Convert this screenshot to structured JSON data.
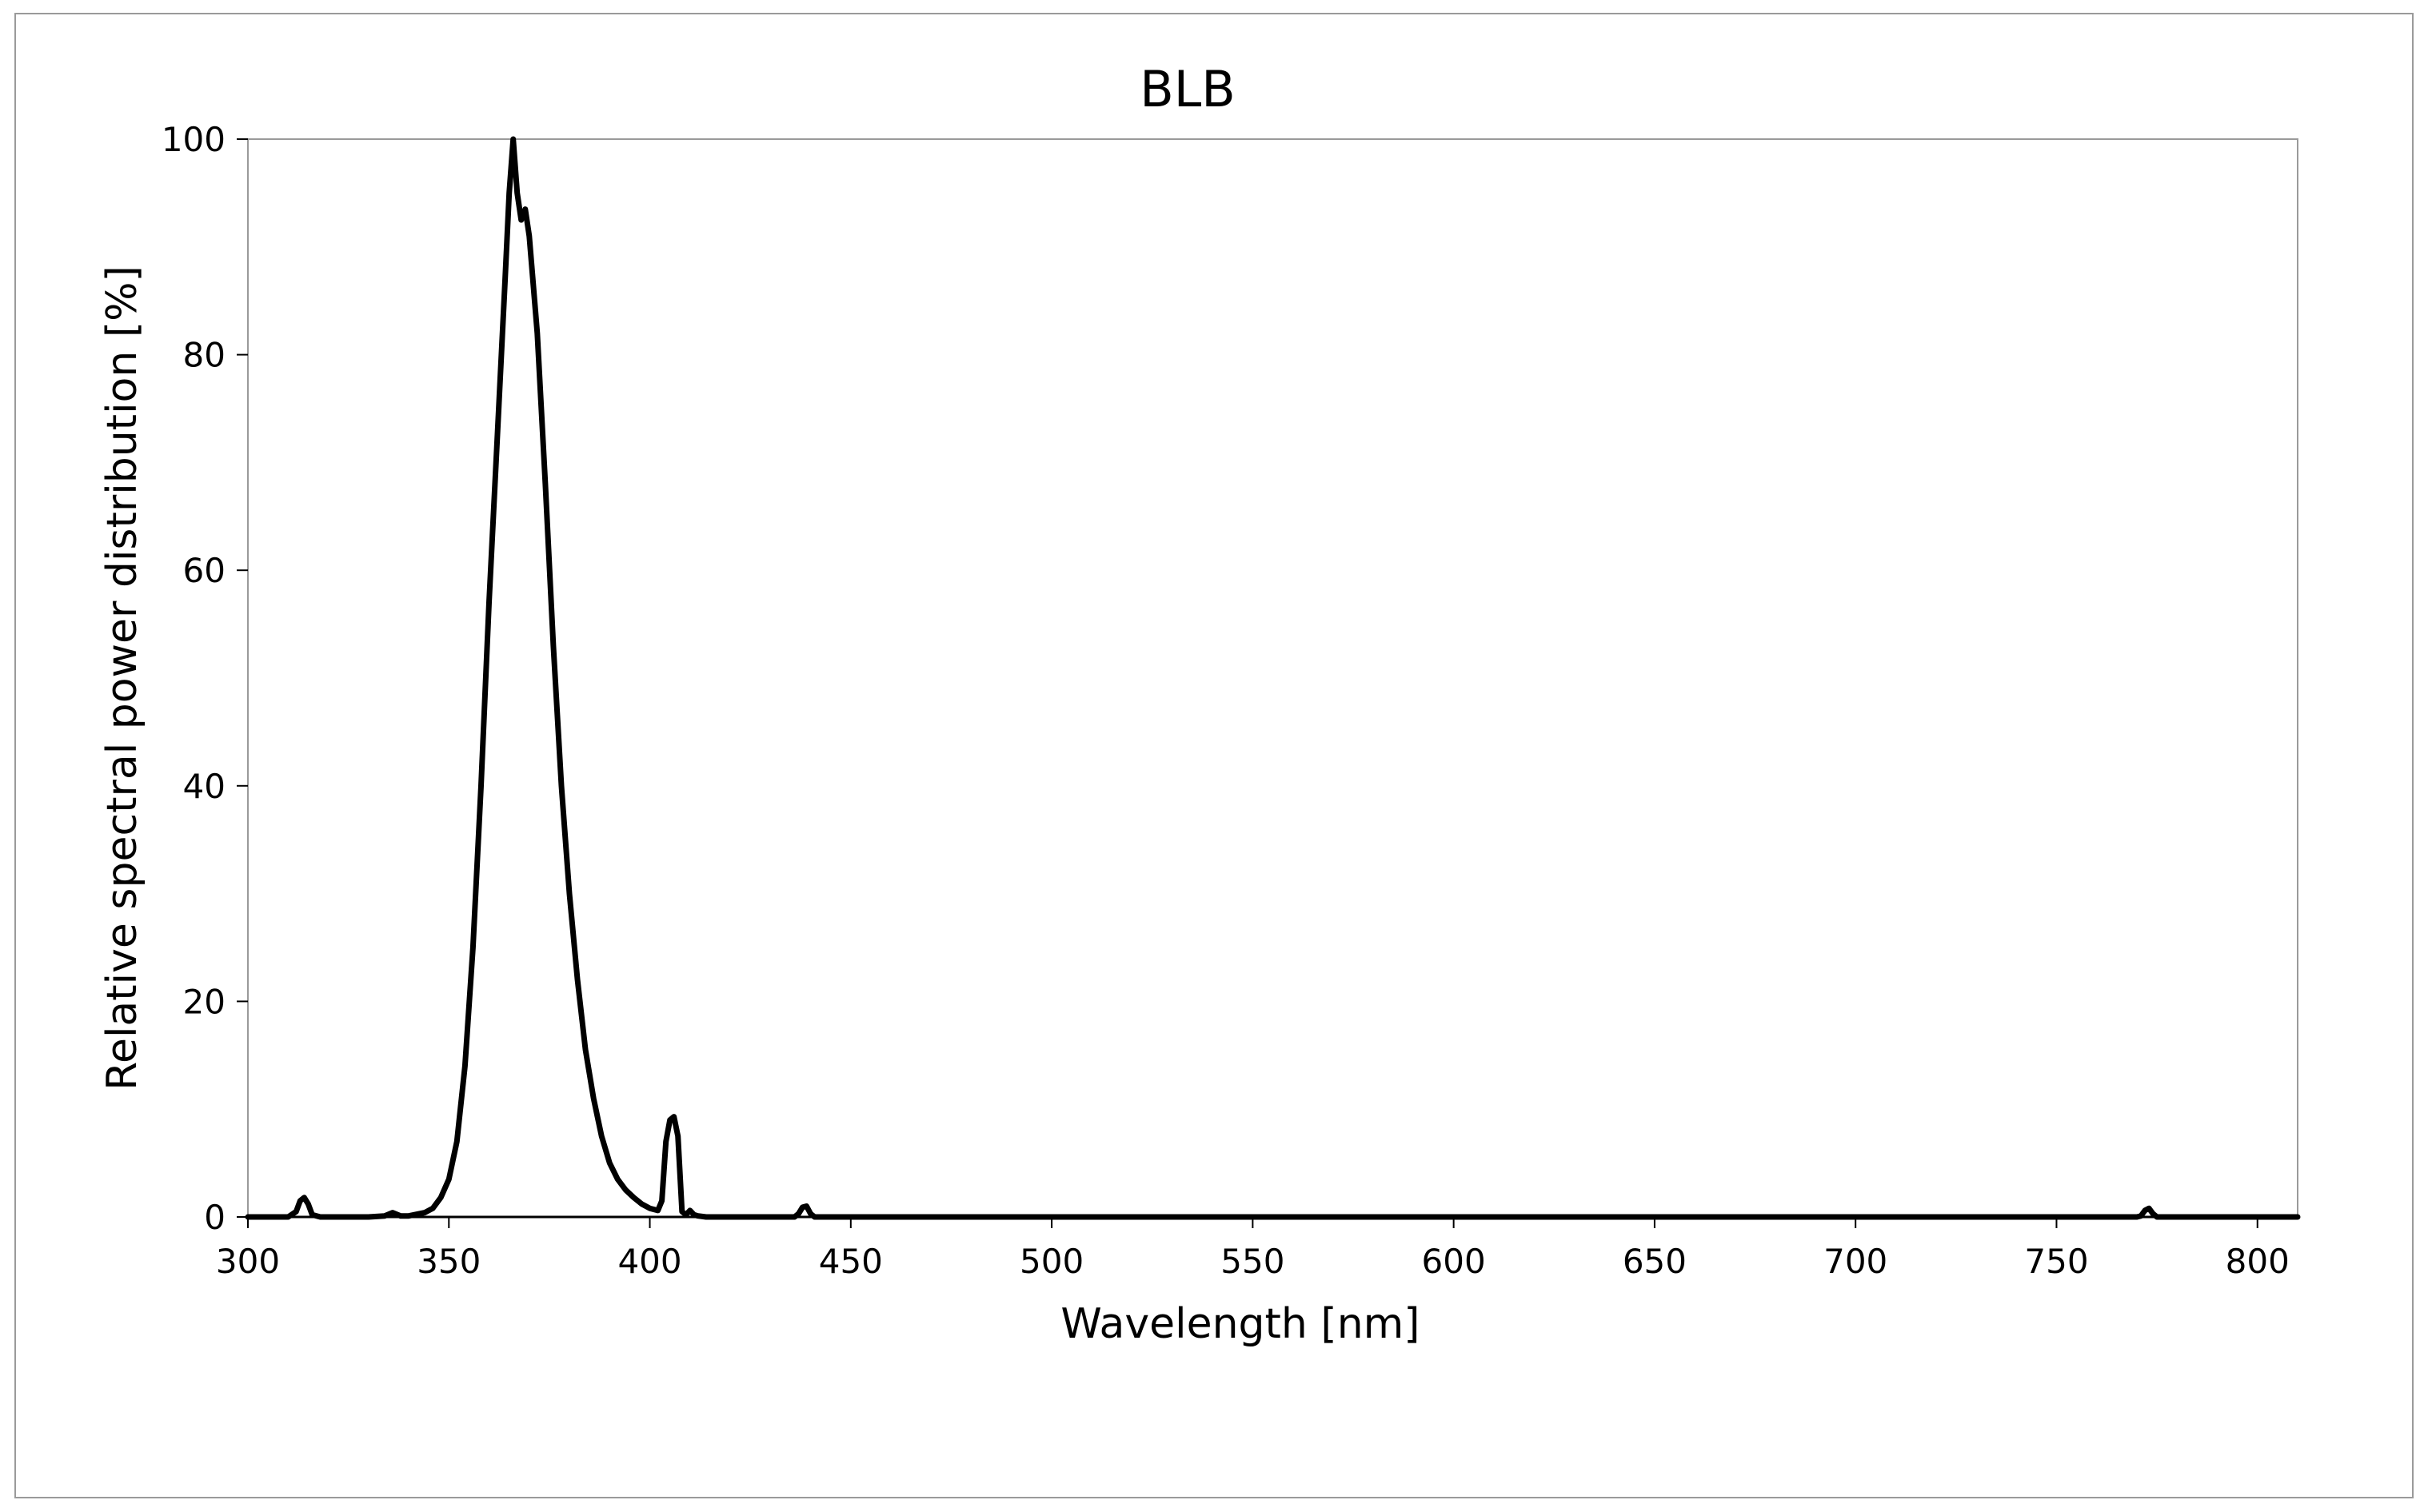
{
  "chart_data": {
    "type": "line",
    "title": "BLB",
    "xlabel": "Wavelength [nm]",
    "ylabel": "Relative spectral power distribution [%]",
    "xlim": [
      300,
      810
    ],
    "ylim": [
      0,
      100
    ],
    "xticks": [
      "300",
      "350",
      "400",
      "450",
      "500",
      "550",
      "600",
      "650",
      "700",
      "750",
      "800"
    ],
    "yticks": [
      "0",
      "20",
      "40",
      "60",
      "80",
      "100"
    ],
    "grid": false,
    "legend": "none",
    "line_color": "#000000",
    "series": [
      {
        "x": [
          300,
          310,
          312,
          313,
          314,
          315,
          316,
          318,
          330,
          334,
          336,
          338,
          340,
          344,
          346,
          348,
          350,
          352,
          354,
          356,
          358,
          360,
          362,
          364,
          365,
          366,
          367,
          368,
          369,
          370,
          372,
          374,
          376,
          378,
          380,
          382,
          384,
          386,
          388,
          390,
          392,
          394,
          396,
          398,
          400,
          402,
          403,
          404,
          405,
          406,
          407,
          408,
          409,
          410,
          411,
          412,
          414,
          420,
          436,
          437,
          438,
          439,
          440,
          441,
          442,
          450,
          500,
          600,
          700,
          770,
          771,
          772,
          773,
          774,
          775,
          780,
          790,
          800,
          810
        ],
        "y": [
          0,
          0,
          0.5,
          1.5,
          1.8,
          1.2,
          0.2,
          0,
          0,
          0.1,
          0.4,
          0.1,
          0.1,
          0.4,
          0.8,
          1.8,
          3.5,
          7,
          14,
          25,
          40,
          57,
          72,
          87,
          95,
          100,
          95,
          92.5,
          93.5,
          91,
          82,
          68,
          53,
          40,
          30,
          22,
          15.5,
          11,
          7.5,
          5,
          3.5,
          2.5,
          1.8,
          1.2,
          0.8,
          0.6,
          1.5,
          7,
          9,
          9.3,
          7.5,
          0.5,
          0.2,
          0.6,
          0.2,
          0.1,
          0,
          0,
          0,
          0.3,
          0.9,
          1,
          0.3,
          0,
          0,
          0,
          0,
          0,
          0,
          0,
          0.1,
          0.6,
          0.8,
          0.3,
          0,
          0,
          0,
          0,
          0
        ]
      }
    ]
  }
}
